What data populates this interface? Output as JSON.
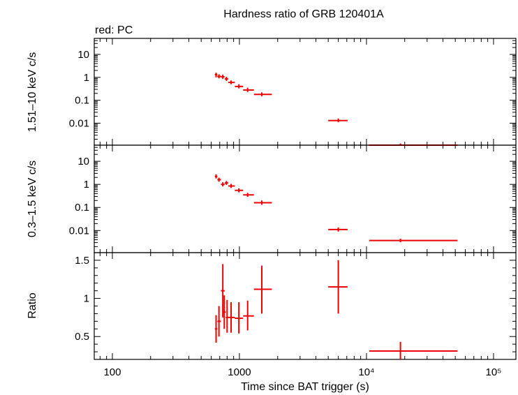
{
  "title": "Hardness ratio of GRB 120401A",
  "subtitle": "red: PC",
  "xlabel": "Time since BAT trigger (s)",
  "colors": {
    "data": "#ee0000",
    "axes": "#000000",
    "background": "#ffffff"
  },
  "chart_data": [
    {
      "type": "scatter",
      "panel": "top",
      "ylabel": "1.51–10 keV c/s",
      "xscale": "log",
      "yscale": "log",
      "xlim": [
        72,
        150000
      ],
      "ylim": [
        0.0011,
        50
      ],
      "xticks": [
        100,
        1000,
        10000,
        100000
      ],
      "xticklabels": [
        "100",
        "1000",
        "10⁴",
        "10⁵"
      ],
      "yticks": [
        0.01,
        0.1,
        1,
        10
      ],
      "yticklabels": [
        "0.01",
        "0.1",
        "1",
        "10"
      ],
      "series": [
        {
          "color": "#ee0000",
          "points": [
            {
              "x": 655,
              "xerr": [
                640,
                670
              ],
              "y": 1.3,
              "yerr": [
                1.0,
                1.6
              ]
            },
            {
              "x": 690,
              "xerr": [
                670,
                715
              ],
              "y": 1.1,
              "yerr": [
                0.9,
                1.35
              ]
            },
            {
              "x": 740,
              "xerr": [
                715,
                765
              ],
              "y": 1.05,
              "yerr": [
                0.85,
                1.3
              ]
            },
            {
              "x": 790,
              "xerr": [
                765,
                815
              ],
              "y": 0.85,
              "yerr": [
                0.7,
                1.05
              ]
            },
            {
              "x": 860,
              "xerr": [
                815,
                920
              ],
              "y": 0.6,
              "yerr": [
                0.5,
                0.73
              ]
            },
            {
              "x": 990,
              "xerr": [
                920,
                1070
              ],
              "y": 0.4,
              "yerr": [
                0.33,
                0.5
              ]
            },
            {
              "x": 1160,
              "xerr": [
                1070,
                1300
              ],
              "y": 0.28,
              "yerr": [
                0.23,
                0.35
              ]
            },
            {
              "x": 1500,
              "xerr": [
                1300,
                1800
              ],
              "y": 0.18,
              "yerr": [
                0.15,
                0.22
              ]
            },
            {
              "x": 6000,
              "xerr": [
                5000,
                7100
              ],
              "y": 0.013,
              "yerr": [
                0.011,
                0.016
              ]
            },
            {
              "x": 18500,
              "xerr": [
                10500,
                52000
              ],
              "y": 0.0011,
              "yerr": [
                0.0011,
                0.0013
              ]
            }
          ]
        }
      ]
    },
    {
      "type": "scatter",
      "panel": "middle",
      "ylabel": "0.3–1.5 keV c/s",
      "xscale": "log",
      "yscale": "log",
      "xlim": [
        72,
        150000
      ],
      "ylim": [
        0.0011,
        50
      ],
      "xticks": [
        100,
        1000,
        10000,
        100000
      ],
      "yticks": [
        0.01,
        0.1,
        1,
        10
      ],
      "yticklabels": [
        "0.01",
        "0.1",
        "1",
        "10"
      ],
      "series": [
        {
          "color": "#ee0000",
          "points": [
            {
              "x": 655,
              "xerr": [
                640,
                670
              ],
              "y": 2.2,
              "yerr": [
                1.8,
                2.7
              ]
            },
            {
              "x": 690,
              "xerr": [
                670,
                715
              ],
              "y": 1.6,
              "yerr": [
                1.3,
                1.95
              ]
            },
            {
              "x": 740,
              "xerr": [
                715,
                765
              ],
              "y": 1.0,
              "yerr": [
                0.82,
                1.25
              ]
            },
            {
              "x": 790,
              "xerr": [
                765,
                815
              ],
              "y": 1.15,
              "yerr": [
                0.95,
                1.4
              ]
            },
            {
              "x": 860,
              "xerr": [
                815,
                920
              ],
              "y": 0.85,
              "yerr": [
                0.7,
                1.05
              ]
            },
            {
              "x": 990,
              "xerr": [
                920,
                1070
              ],
              "y": 0.55,
              "yerr": [
                0.45,
                0.67
              ]
            },
            {
              "x": 1160,
              "xerr": [
                1070,
                1300
              ],
              "y": 0.35,
              "yerr": [
                0.29,
                0.43
              ]
            },
            {
              "x": 1500,
              "xerr": [
                1300,
                1800
              ],
              "y": 0.16,
              "yerr": [
                0.13,
                0.2
              ]
            },
            {
              "x": 6000,
              "xerr": [
                5000,
                7100
              ],
              "y": 0.011,
              "yerr": [
                0.009,
                0.0135
              ]
            },
            {
              "x": 18500,
              "xerr": [
                10500,
                52000
              ],
              "y": 0.0037,
              "yerr": [
                0.0031,
                0.0044
              ]
            }
          ]
        }
      ]
    },
    {
      "type": "scatter",
      "panel": "bottom",
      "ylabel": "Ratio",
      "xscale": "log",
      "yscale": "linear",
      "xlim": [
        72,
        150000
      ],
      "ylim": [
        0.2,
        1.6
      ],
      "xticks": [
        100,
        1000,
        10000,
        100000
      ],
      "xticklabels": [
        "100",
        "1000",
        "10⁴",
        "10⁵"
      ],
      "yticks": [
        0.5,
        1,
        1.5
      ],
      "yticklabels": [
        "0.5",
        "1",
        "1.5"
      ],
      "series": [
        {
          "color": "#ee0000",
          "points": [
            {
              "x": 655,
              "xerr": [
                640,
                670
              ],
              "y": 0.6,
              "yerr": [
                0.42,
                0.78
              ]
            },
            {
              "x": 690,
              "xerr": [
                670,
                715
              ],
              "y": 0.7,
              "yerr": [
                0.5,
                0.9
              ]
            },
            {
              "x": 740,
              "xerr": [
                715,
                765
              ],
              "y": 1.1,
              "yerr": [
                0.75,
                1.45
              ]
            },
            {
              "x": 760,
              "xerr": [
                740,
                780
              ],
              "y": 0.82,
              "yerr": [
                0.6,
                1.04
              ]
            },
            {
              "x": 800,
              "xerr": [
                780,
                825
              ],
              "y": 0.75,
              "yerr": [
                0.55,
                0.98
              ]
            },
            {
              "x": 860,
              "xerr": [
                825,
                920
              ],
              "y": 0.75,
              "yerr": [
                0.55,
                0.95
              ]
            },
            {
              "x": 990,
              "xerr": [
                920,
                1070
              ],
              "y": 0.74,
              "yerr": [
                0.54,
                0.95
              ]
            },
            {
              "x": 1160,
              "xerr": [
                1070,
                1300
              ],
              "y": 0.77,
              "yerr": [
                0.58,
                0.97
              ]
            },
            {
              "x": 1500,
              "xerr": [
                1300,
                1800
              ],
              "y": 1.12,
              "yerr": [
                0.8,
                1.43
              ]
            },
            {
              "x": 6000,
              "xerr": [
                5000,
                7100
              ],
              "y": 1.15,
              "yerr": [
                0.8,
                1.5
              ]
            },
            {
              "x": 18500,
              "xerr": [
                10500,
                52000
              ],
              "y": 0.31,
              "yerr": [
                0.2,
                0.43
              ]
            }
          ]
        }
      ]
    }
  ]
}
